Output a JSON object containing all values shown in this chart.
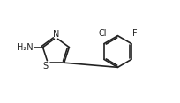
{
  "bg_color": "#ffffff",
  "line_color": "#222222",
  "line_width": 1.2,
  "font_size_label": 7.0,
  "figsize": [
    2.04,
    1.17
  ],
  "dpi": 100,
  "xlim": [
    0.0,
    1.1
  ],
  "ylim": [
    0.1,
    0.9
  ]
}
